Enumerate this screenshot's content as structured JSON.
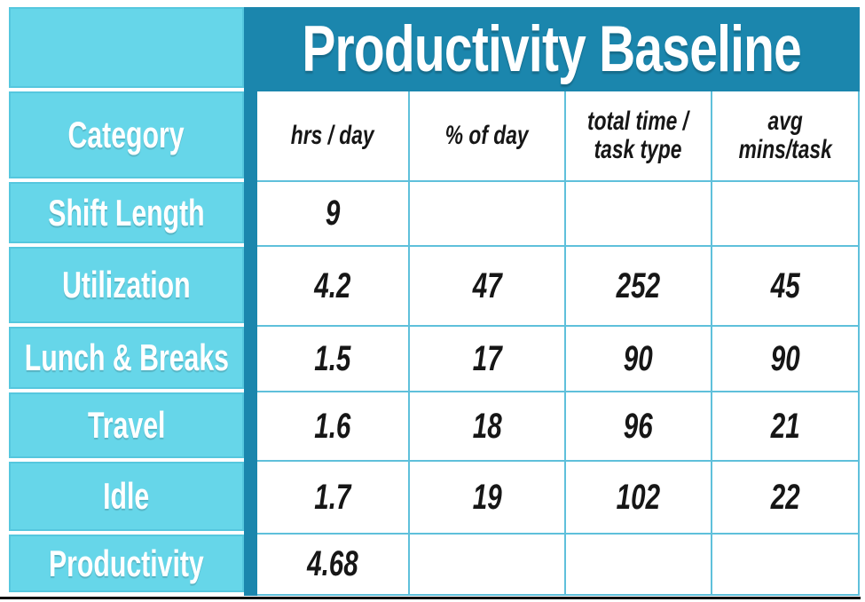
{
  "chart_data": {
    "type": "table",
    "title": "Productivity Baseline",
    "columns": [
      "Category",
      "hrs / day",
      "% of day",
      "total time / task type",
      "avg mins/task"
    ],
    "rows": [
      [
        "Shift Length",
        9,
        null,
        null,
        null
      ],
      [
        "Utilization",
        4.2,
        47,
        252,
        45
      ],
      [
        "Lunch & Breaks",
        1.5,
        17,
        90,
        90
      ],
      [
        "Travel",
        1.6,
        18,
        96,
        21
      ],
      [
        "Idle",
        1.7,
        19,
        102,
        22
      ],
      [
        "Productivity",
        4.68,
        null,
        null,
        null
      ]
    ]
  },
  "display": {
    "column_headers": [
      "hrs / day",
      "% of day",
      "total time /\ntask type",
      "avg\nmins/task"
    ]
  },
  "colors": {
    "header_teal": "#1b86ad",
    "cell_cyan": "#66d6e9",
    "cyan_border": "#55c7de",
    "grid_line_blue": "#5fc0db",
    "bottom_rule_black": "#0c0c0c",
    "text_white": "#ffffff",
    "text_dark": "#161616"
  }
}
